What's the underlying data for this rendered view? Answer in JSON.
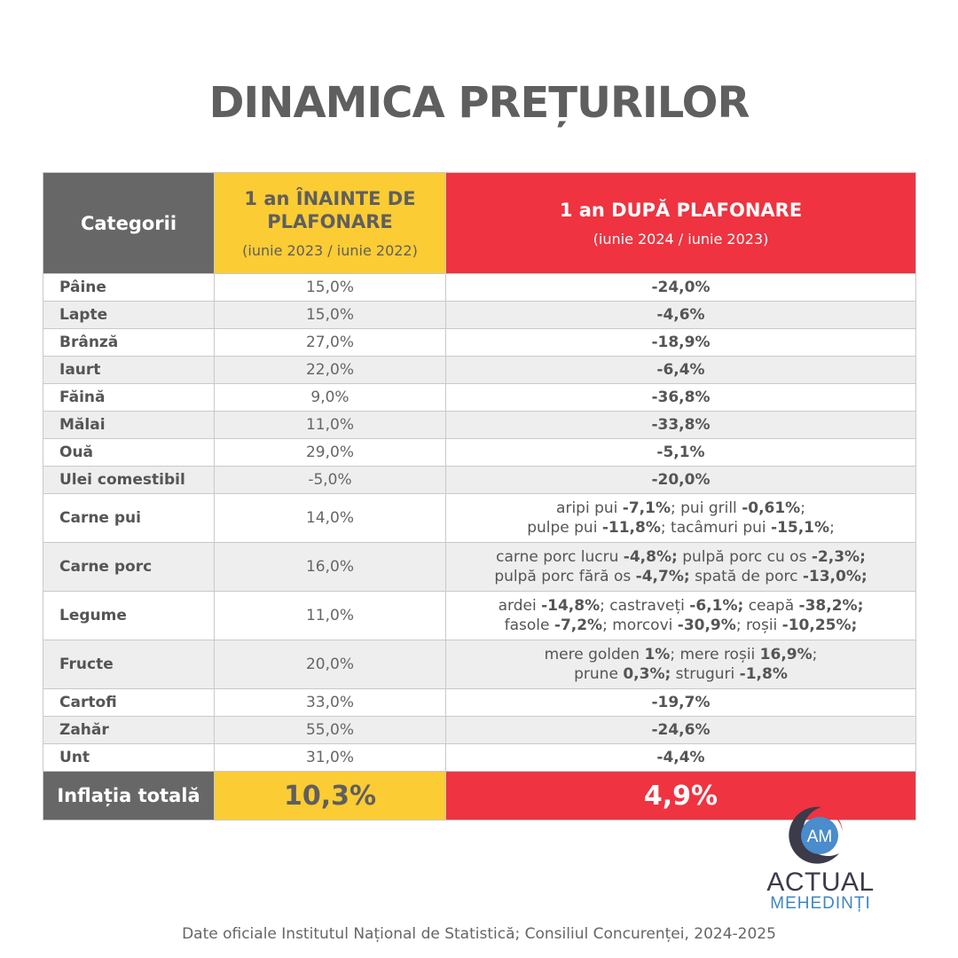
{
  "title": "DINAMICA PREȚURILOR",
  "header": {
    "category": "Categorii",
    "before_title": "1 an ÎNAINTE DE PLAFONARE",
    "before_sub": "(iunie 2023 / iunie 2022)",
    "after_title": "1 an DUPĂ PLAFONARE",
    "after_sub": "(iunie 2024 / iunie 2023)"
  },
  "rows": [
    {
      "category": "Pâine",
      "before": "15,0%",
      "after": "-24,0%"
    },
    {
      "category": "Lapte",
      "before": "15,0%",
      "after": "-4,6%"
    },
    {
      "category": "Brânză",
      "before": "27,0%",
      "after": "-18,9%"
    },
    {
      "category": "Iaurt",
      "before": "22,0%",
      "after": "-6,4%"
    },
    {
      "category": "Făină",
      "before": "9,0%",
      "after": "-36,8%"
    },
    {
      "category": "Mălai",
      "before": "11,0%",
      "after": "-33,8%"
    },
    {
      "category": "Ouă",
      "before": "29,0%",
      "after": "-5,1%"
    },
    {
      "category": "Ulei comestibil",
      "before": "-5,0%",
      "after": "-20,0%"
    },
    {
      "category": "Carne pui",
      "before": "14,0%",
      "after_parts": [
        {
          "t": "aripi pui ",
          "v": "-7,1%"
        },
        {
          "t": "; pui grill ",
          "v": "-0,61%"
        },
        {
          "t": ";",
          "br": true
        },
        {
          "t": "pulpe pui ",
          "v": "-11,8%"
        },
        {
          "t": "; tacâmuri pui ",
          "v": "-15,1%"
        },
        {
          "t": ";"
        }
      ]
    },
    {
      "category": "Carne porc",
      "before": "16,0%",
      "after_parts": [
        {
          "t": "carne porc lucru ",
          "v": "-4,8%;"
        },
        {
          "t": " pulpă porc cu os ",
          "v": "-2,3%;",
          "br": true
        },
        {
          "t": "pulpă porc fără os ",
          "v": "-4,7%;"
        },
        {
          "t": " spată de porc ",
          "v": "-13,0%;"
        }
      ]
    },
    {
      "category": "Legume",
      "before": "11,0%",
      "after_parts": [
        {
          "t": "ardei ",
          "v": "-14,8%"
        },
        {
          "t": "; castraveți ",
          "v": "-6,1%;"
        },
        {
          "t": " ceapă ",
          "v": "-38,2%;",
          "br": true
        },
        {
          "t": "fasole ",
          "v": "-7,2%"
        },
        {
          "t": "; morcovi ",
          "v": "-30,9%"
        },
        {
          "t": "; roșii ",
          "v": "-10,25%;"
        }
      ]
    },
    {
      "category": "Fructe",
      "before": "20,0%",
      "after_parts": [
        {
          "t": "mere golden ",
          "v": "1%"
        },
        {
          "t": "; mere roșii ",
          "v": "16,9%"
        },
        {
          "t": ";",
          "br": true
        },
        {
          "t": "prune ",
          "v": "0,3%;"
        },
        {
          "t": " struguri ",
          "v": "-1,8%"
        }
      ]
    },
    {
      "category": "Cartofi",
      "before": "33,0%",
      "after": "-19,7%"
    },
    {
      "category": "Zahăr",
      "before": "55,0%",
      "after": "-24,6%"
    },
    {
      "category": "Unt",
      "before": "31,0%",
      "after": "-4,4%"
    }
  ],
  "total": {
    "label": "Inflația totală",
    "before": "10,3%",
    "after": "4,9%"
  },
  "logo": {
    "initials": "AM",
    "line1": "ACTUAL",
    "line2": "MEHEDINȚI"
  },
  "source": "Date oficiale Institutul Național de Statistică; Consiliul Concurenței, 2024-2025",
  "colors": {
    "gray": "#676767",
    "yellow": "#fbcc33",
    "red": "#ef3340",
    "logo_blue": "#3f86c4"
  }
}
